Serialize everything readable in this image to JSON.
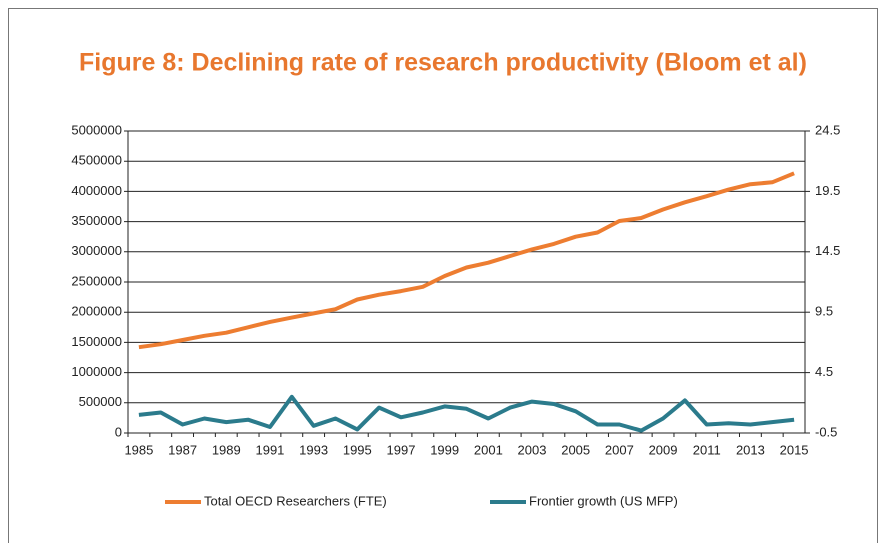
{
  "chart_data": {
    "type": "line",
    "title": "Figure 8: Declining rate of research productivity (Bloom et al)",
    "categories": [
      "1985",
      null,
      "1987",
      null,
      "1989",
      null,
      "1991",
      null,
      "1993",
      null,
      "1995",
      null,
      "1997",
      null,
      "1999",
      null,
      "2001",
      null,
      "2003",
      null,
      "2005",
      null,
      "2007",
      null,
      "2009",
      null,
      "2011",
      null,
      "2013",
      null,
      "2015"
    ],
    "series": [
      {
        "name": "Total OECD Researchers (FTE)",
        "color": "#ed7d31",
        "axis": "y",
        "values": [
          1420000,
          1470000,
          1540000,
          1610000,
          1660000,
          1750000,
          1840000,
          1910000,
          1980000,
          2050000,
          2210000,
          2290000,
          2350000,
          2420000,
          2600000,
          2740000,
          2820000,
          2930000,
          3040000,
          3130000,
          3250000,
          3320000,
          3510000,
          3560000,
          3700000,
          3820000,
          3920000,
          4030000,
          4120000,
          4150000,
          4300000
        ]
      },
      {
        "name": "Frontier growth (US MFP)",
        "color": "#2b7b8c",
        "axis": "y2",
        "values": [
          1.0,
          1.2,
          0.2,
          0.7,
          0.4,
          0.6,
          0.0,
          2.5,
          0.1,
          0.7,
          -0.2,
          1.6,
          0.8,
          1.2,
          1.7,
          1.5,
          0.7,
          1.6,
          2.1,
          1.9,
          1.3,
          0.2,
          0.2,
          -0.3,
          0.7,
          2.2,
          0.2,
          0.3,
          0.2,
          0.4,
          0.6
        ]
      }
    ],
    "ylim": [
      0,
      5000000
    ],
    "yticks": [
      0,
      500000,
      1000000,
      1500000,
      2000000,
      2500000,
      3000000,
      3500000,
      4000000,
      4500000,
      5000000
    ],
    "y2lim": [
      -0.5,
      24.5
    ],
    "y2ticks": [
      -0.5,
      4.5,
      9.5,
      14.5,
      19.5,
      24.5
    ],
    "grid": true,
    "legend": "bottom"
  }
}
